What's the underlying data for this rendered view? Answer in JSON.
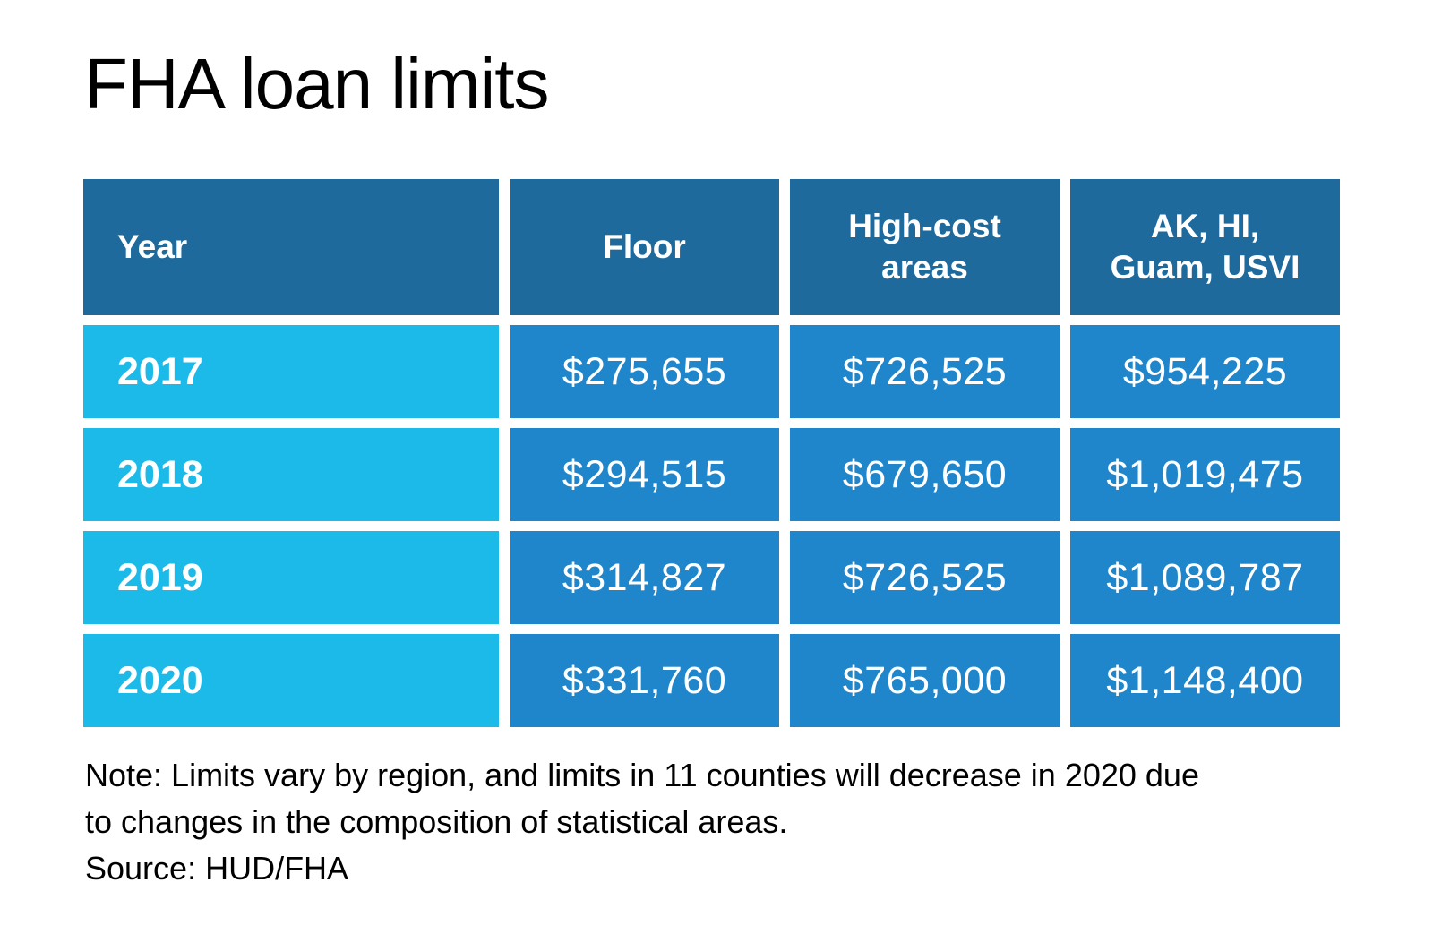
{
  "title": "FHA loan limits",
  "table": {
    "headers": [
      {
        "label": "Year"
      },
      {
        "label": "Floor"
      },
      {
        "label": "High-cost\nareas"
      },
      {
        "label": "AK, HI,\nGuam, USVI"
      }
    ],
    "rows": [
      {
        "cells": [
          "2017",
          "$275,655",
          "$726,525",
          "$954,225"
        ]
      },
      {
        "cells": [
          "2018",
          "$294,515",
          "$679,650",
          "$1,019,475"
        ]
      },
      {
        "cells": [
          "2019",
          "$314,827",
          "$726,525",
          "$1,089,787"
        ]
      },
      {
        "cells": [
          "2020",
          "$331,760",
          "$765,000",
          "$1,148,400"
        ]
      }
    ]
  },
  "note": "Note: Limits vary by region, and limits in 11 counties will decrease in 2020 due\nto changes in the composition of statistical areas.",
  "source": "Source: HUD/FHA",
  "colors": {
    "header_bg": "#1e6a9d",
    "year_bg": "#1cbae8",
    "value_bg": "#1f86cb",
    "cell_text": "#ffffff",
    "title_text": "#000000",
    "note_text": "#000000",
    "page_bg": "#ffffff"
  },
  "chart_data": {
    "type": "table",
    "title": "FHA loan limits",
    "columns": [
      "Year",
      "Floor",
      "High-cost areas",
      "AK, HI, Guam, USVI"
    ],
    "rows": [
      [
        "2017",
        "$275,655",
        "$726,525",
        "$954,225"
      ],
      [
        "2018",
        "$294,515",
        "$679,650",
        "$1,019,475"
      ],
      [
        "2019",
        "$314,827",
        "$726,525",
        "$1,089,787"
      ],
      [
        "2020",
        "$331,760",
        "$765,000",
        "$1,148,400"
      ]
    ],
    "series": [
      {
        "name": "Floor",
        "values": [
          275655,
          294515,
          314827,
          331760
        ]
      },
      {
        "name": "High-cost areas",
        "values": [
          726525,
          679650,
          726525,
          765000
        ]
      },
      {
        "name": "AK, HI, Guam, USVI",
        "values": [
          954225,
          1019475,
          1089787,
          1148400
        ]
      }
    ],
    "categories": [
      "2017",
      "2018",
      "2019",
      "2020"
    ],
    "note": "Note: Limits vary by region, and limits in 11 counties will decrease in 2020 due to changes in the composition of statistical areas.",
    "source": "Source: HUD/FHA"
  }
}
